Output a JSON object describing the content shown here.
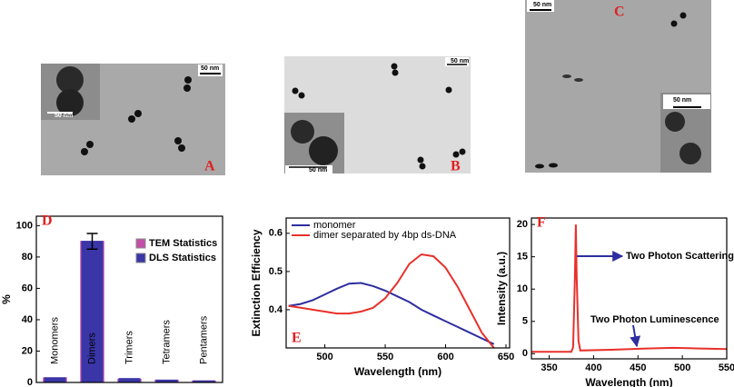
{
  "micrographs": [
    {
      "label": "A",
      "scale_bars": [
        "50 nm",
        "50 nm"
      ]
    },
    {
      "label": "B",
      "scale_bars": [
        "50 nm",
        "50 nm"
      ]
    },
    {
      "label": "C",
      "scale_bars": [
        "50 nm",
        "50 nm"
      ]
    }
  ],
  "chart_data": [
    {
      "type": "bar",
      "panel_label": "D",
      "y_label": "%",
      "categories": [
        "Monomers",
        "Dimers",
        "Trimers",
        "Tetramers",
        "Pentamers"
      ],
      "series": [
        {
          "name": "TEM Statistics",
          "color": "#c24fa8",
          "values": [
            3,
            90,
            2,
            1.5,
            1
          ]
        },
        {
          "name": "DLS Statistics",
          "color": "#3a36a8",
          "values": [
            3,
            90,
            2.5,
            1.5,
            1
          ],
          "errors": [
            null,
            5,
            null,
            null,
            null
          ]
        }
      ],
      "ylim": [
        0,
        106
      ],
      "yticks": [
        0,
        20,
        40,
        60,
        80,
        100
      ],
      "legend": "upper-right"
    },
    {
      "type": "line",
      "panel_label": "E",
      "x_label": "Wavelength (nm)",
      "y_label": "Extinction Efficiency",
      "x": [
        470,
        480,
        490,
        500,
        510,
        520,
        530,
        540,
        550,
        560,
        570,
        580,
        590,
        600,
        610,
        620,
        630,
        640
      ],
      "series": [
        {
          "name": "monomer",
          "color": "#2e2ea0",
          "values": [
            0.41,
            0.415,
            0.425,
            0.44,
            0.455,
            0.468,
            0.47,
            0.462,
            0.45,
            0.435,
            0.42,
            0.4,
            0.385,
            0.37,
            0.355,
            0.34,
            0.325,
            0.31
          ]
        },
        {
          "name": "dimer separated by 4bp ds-DNA",
          "color": "#e8302a",
          "values": [
            0.41,
            0.405,
            0.4,
            0.395,
            0.39,
            0.39,
            0.395,
            0.405,
            0.43,
            0.47,
            0.52,
            0.545,
            0.54,
            0.51,
            0.46,
            0.4,
            0.34,
            0.3
          ]
        }
      ],
      "xlim": [
        468,
        653
      ],
      "xticks": [
        500,
        550,
        600,
        650
      ],
      "ylim": [
        0.3,
        0.64
      ],
      "yticks": [
        0.4,
        0.5,
        0.6
      ],
      "legend": "upper-left"
    },
    {
      "type": "line",
      "panel_label": "F",
      "x_label": "Wavelength (nm)",
      "y_label": "Intensity (a.u.)",
      "x": [
        330,
        375,
        377,
        379,
        380,
        381,
        383,
        385,
        420,
        460,
        490,
        520,
        550
      ],
      "series": [
        {
          "color": "#e8302a",
          "values": [
            0.3,
            0.3,
            1,
            12,
            20,
            12,
            2,
            0.5,
            0.6,
            0.8,
            0.9,
            0.8,
            0.7
          ]
        }
      ],
      "annotations": [
        "Two Photon Scattering",
        "Two Photon Luminescence"
      ],
      "xlim": [
        330,
        550
      ],
      "xticks": [
        350,
        400,
        450,
        500,
        550
      ],
      "ylim": [
        -0.8,
        21
      ],
      "yticks": [
        0,
        5,
        10,
        15,
        20
      ]
    }
  ]
}
